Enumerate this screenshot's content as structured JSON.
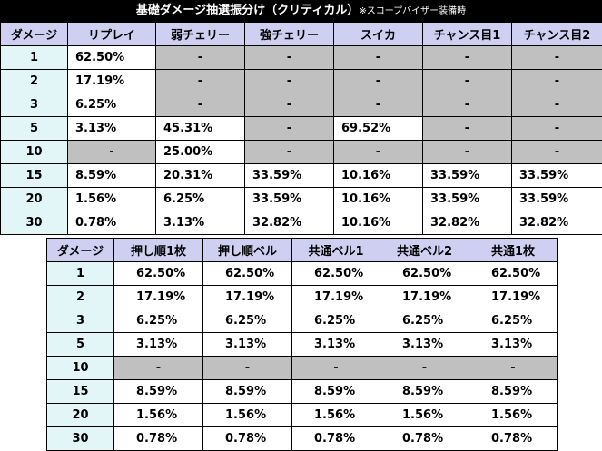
{
  "title": {
    "main": "基礎ダメージ抽選振分け（クリティカル）",
    "note": "※スコープバイザー装備時"
  },
  "table1": {
    "headers": [
      "ダメージ",
      "リプレイ",
      "弱チェリー",
      "強チェリー",
      "スイカ",
      "チャンス目1",
      "チャンス目2"
    ],
    "rows": [
      [
        "1",
        "62.50%",
        "-",
        "-",
        "-",
        "-",
        "-"
      ],
      [
        "2",
        "17.19%",
        "-",
        "-",
        "-",
        "-",
        "-"
      ],
      [
        "3",
        "6.25%",
        "-",
        "-",
        "-",
        "-",
        "-"
      ],
      [
        "5",
        "3.13%",
        "45.31%",
        "-",
        "69.52%",
        "-",
        "-"
      ],
      [
        "10",
        "-",
        "25.00%",
        "-",
        "-",
        "-",
        "-"
      ],
      [
        "15",
        "8.59%",
        "20.31%",
        "33.59%",
        "10.16%",
        "33.59%",
        "33.59%"
      ],
      [
        "20",
        "1.56%",
        "6.25%",
        "33.59%",
        "10.16%",
        "33.59%",
        "33.59%"
      ],
      [
        "30",
        "0.78%",
        "3.13%",
        "32.82%",
        "10.16%",
        "32.82%",
        "32.82%"
      ]
    ]
  },
  "table2": {
    "headers": [
      "ダメージ",
      "押し順1枚",
      "押し順ベル",
      "共通ベル1",
      "共通ベル2",
      "共通1枚"
    ],
    "rows": [
      [
        "1",
        "62.50%",
        "62.50%",
        "62.50%",
        "62.50%",
        "62.50%"
      ],
      [
        "2",
        "17.19%",
        "17.19%",
        "17.19%",
        "17.19%",
        "17.19%"
      ],
      [
        "3",
        "6.25%",
        "6.25%",
        "6.25%",
        "6.25%",
        "6.25%"
      ],
      [
        "5",
        "3.13%",
        "3.13%",
        "3.13%",
        "3.13%",
        "3.13%"
      ],
      [
        "10",
        "-",
        "-",
        "-",
        "-",
        "-"
      ],
      [
        "15",
        "8.59%",
        "8.59%",
        "8.59%",
        "8.59%",
        "8.59%"
      ],
      [
        "20",
        "1.56%",
        "1.56%",
        "1.56%",
        "1.56%",
        "1.56%"
      ],
      [
        "30",
        "0.78%",
        "0.78%",
        "0.78%",
        "0.78%",
        "0.78%"
      ]
    ]
  }
}
